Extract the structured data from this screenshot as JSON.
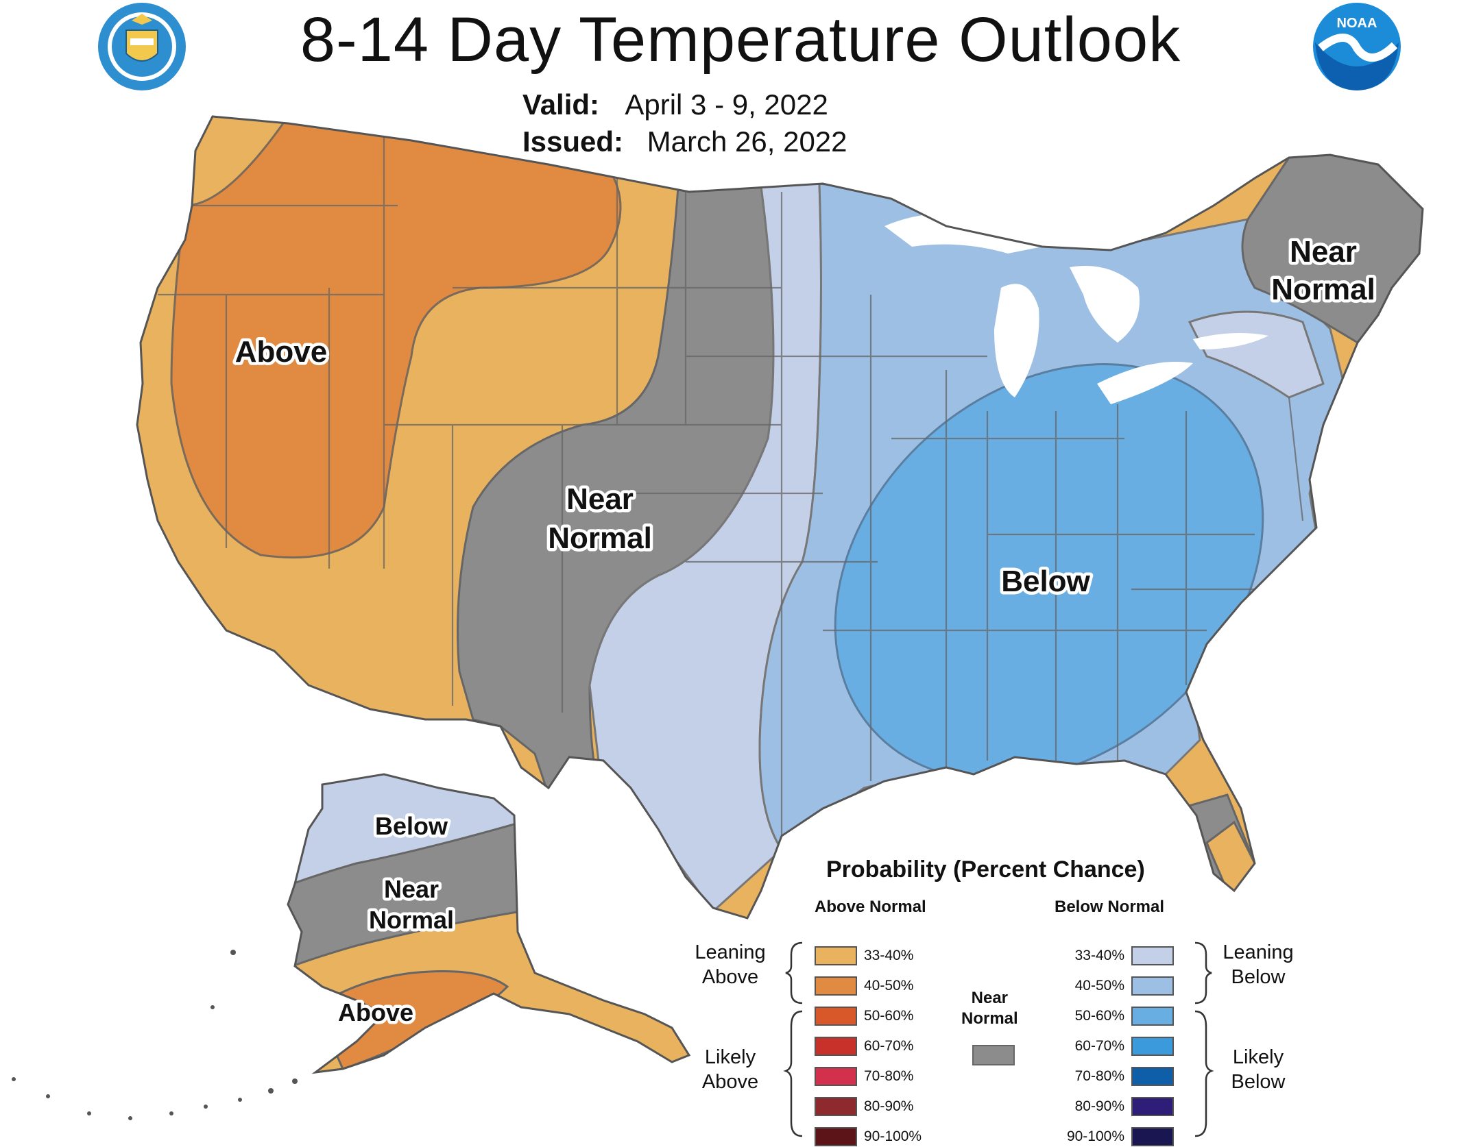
{
  "header": {
    "title": "8-14 Day Temperature Outlook",
    "valid_label": "Valid:",
    "valid_value": "April 3 - 9, 2022",
    "issued_label": "Issued:",
    "issued_value": "March 26, 2022"
  },
  "logos": {
    "left": "department-of-commerce-seal",
    "right_text": "NOAA"
  },
  "map": {
    "region_labels": {
      "west_above": "Above",
      "central_near": [
        "Near",
        "Normal"
      ],
      "east_below": "Below",
      "northeast_near": [
        "Near",
        "Normal"
      ],
      "alaska_below": "Below",
      "alaska_near": [
        "Near",
        "Normal"
      ],
      "alaska_above": "Above"
    },
    "colors": {
      "above_33_40": "#E8B25E",
      "above_40_50": "#E08A42",
      "near_normal": "#8C8C8C",
      "below_33_40": "#C4D0E8",
      "below_40_50": "#9DBFE3",
      "below_50_60": "#69AEE2",
      "water": "#FFFFFF"
    }
  },
  "legend": {
    "title": "Probability (Percent Chance)",
    "above_header": "Above Normal",
    "below_header": "Below Normal",
    "near_normal_label": [
      "Near",
      "Normal"
    ],
    "leaning_above": [
      "Leaning",
      "Above"
    ],
    "likely_above": [
      "Likely",
      "Above"
    ],
    "leaning_below": [
      "Leaning",
      "Below"
    ],
    "likely_below": [
      "Likely",
      "Below"
    ],
    "above": [
      {
        "pct": "33-40%",
        "color": "#E8B25E"
      },
      {
        "pct": "40-50%",
        "color": "#E08A42"
      },
      {
        "pct": "50-60%",
        "color": "#D9582A"
      },
      {
        "pct": "60-70%",
        "color": "#C8302A"
      },
      {
        "pct": "70-80%",
        "color": "#D3304E"
      },
      {
        "pct": "80-90%",
        "color": "#8E2A2E"
      },
      {
        "pct": "90-100%",
        "color": "#5C1418"
      }
    ],
    "below": [
      {
        "pct": "33-40%",
        "color": "#C4D0E8"
      },
      {
        "pct": "40-50%",
        "color": "#9DBFE3"
      },
      {
        "pct": "50-60%",
        "color": "#69AEE2"
      },
      {
        "pct": "60-70%",
        "color": "#3A9ADB"
      },
      {
        "pct": "70-80%",
        "color": "#0F5FA8"
      },
      {
        "pct": "80-90%",
        "color": "#2E1E78"
      },
      {
        "pct": "90-100%",
        "color": "#1A1652"
      }
    ]
  }
}
